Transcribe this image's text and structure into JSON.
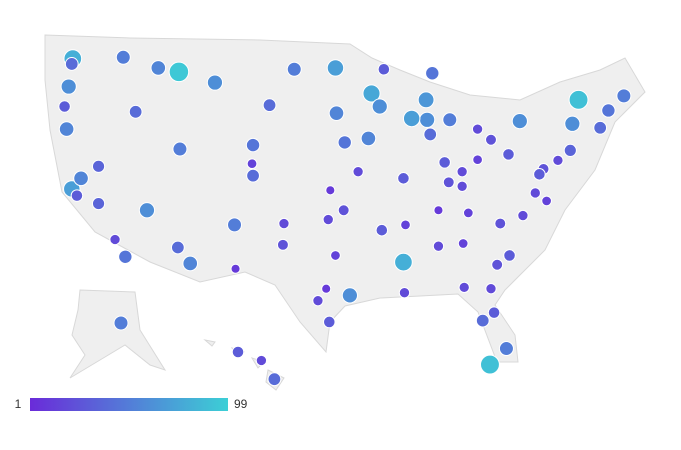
{
  "chart_data": {
    "type": "bubble_map",
    "legend": {
      "min": 1,
      "max": 99,
      "colors": [
        "#6a2bd9",
        "#3ccfd6"
      ]
    },
    "points": {
      "lon": [
        -122.3,
        -122.4,
        -122.7,
        -123.1,
        -117.4,
        -116.2,
        -122.4,
        -121.9,
        -121.5,
        -119.8,
        -118.2,
        -117.2,
        -115.1,
        -112.1,
        -110.9,
        -111.9,
        -104.9,
        -104.8,
        -106.6,
        -106.5,
        -108.5,
        -114.0,
        -112.0,
        -96.8,
        -100.8,
        -93.3,
        -92.1,
        -96.7,
        -95.9,
        -94.6,
        -97.3,
        -97.5,
        -96.0,
        -96.8,
        -97.7,
        -98.5,
        -95.4,
        -97.4,
        -101.9,
        -101.8,
        -92.3,
        -90.1,
        -90.0,
        -86.8,
        -84.4,
        -86.8,
        -90.2,
        -90.2,
        -87.6,
        -87.9,
        -89.4,
        -83.0,
        -81.7,
        -83.0,
        -84.5,
        -86.2,
        -85.8,
        -80.0,
        -78.9,
        -74.0,
        -75.2,
        -76.6,
        -77.0,
        -71.1,
        -70.3,
        -68.8,
        -73.2,
        -73.8,
        -77.4,
        -76.3,
        -78.6,
        -80.8,
        -79.9,
        -81.7,
        -81.4,
        -82.5,
        -80.2,
        -81.8,
        -84.3,
        -81.1,
        -83.9,
        -84.5,
        -93.6,
        -88.0,
        -87.4,
        -85.7,
        -92.5,
        -104.8,
        -103.2,
        -119.8,
        -122.9,
        -150.0,
        -157.8,
        -156.0,
        -155.0
      ],
      "lat": [
        47.6,
        47.2,
        45.5,
        44.0,
        47.7,
        43.6,
        37.8,
        37.3,
        38.6,
        36.7,
        34.0,
        32.7,
        36.2,
        33.4,
        32.2,
        40.8,
        39.7,
        38.8,
        35.1,
        31.8,
        45.8,
        46.9,
        46.6,
        46.9,
        46.8,
        44.98,
        46.8,
        43.5,
        41.3,
        39.1,
        37.7,
        35.5,
        36.2,
        32.8,
        30.3,
        29.4,
        29.8,
        27.8,
        33.6,
        35.2,
        34.7,
        30.0,
        35.1,
        36.2,
        33.7,
        33.5,
        32.3,
        38.6,
        41.9,
        43.0,
        43.1,
        42.3,
        41.5,
        40.0,
        39.1,
        39.8,
        38.3,
        40.4,
        42.9,
        40.7,
        39.95,
        39.3,
        38.9,
        42.4,
        43.7,
        44.8,
        44.5,
        42.7,
        37.5,
        36.9,
        35.8,
        35.2,
        32.8,
        30.3,
        28.5,
        27.9,
        25.8,
        24.6,
        30.4,
        32.1,
        36.0,
        38.0,
        41.6,
        44.5,
        46.5,
        43.0,
        44.0,
        41.1,
        44.1,
        39.5,
        42.3,
        61.2,
        21.3,
        20.8,
        19.7
      ],
      "values": [
        80,
        40,
        60,
        30,
        50,
        40,
        70,
        30,
        55,
        35,
        20,
        45,
        60,
        40,
        55,
        50,
        15,
        40,
        50,
        10,
        60,
        55,
        95,
        70,
        50,
        75,
        30,
        55,
        45,
        20,
        10,
        20,
        25,
        15,
        10,
        20,
        60,
        30,
        25,
        20,
        30,
        20,
        15,
        10,
        15,
        20,
        80,
        30,
        40,
        60,
        70,
        20,
        25,
        15,
        20,
        30,
        25,
        30,
        60,
        35,
        20,
        25,
        30,
        40,
        45,
        50,
        90,
        60,
        20,
        15,
        20,
        25,
        30,
        20,
        30,
        40,
        50,
        90,
        20,
        25,
        15,
        20,
        55,
        65,
        45,
        50,
        60,
        45,
        40,
        35,
        55,
        50,
        30,
        20,
        40
      ]
    }
  }
}
